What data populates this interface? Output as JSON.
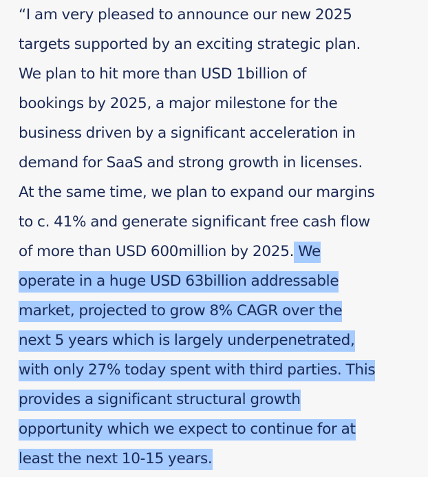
{
  "selection_color": "#a6cbff",
  "text_color": "#1b2a55",
  "quote": {
    "lines": [
      {
        "plain": "“I am very pleased to announce our new 2025",
        "selected": ""
      },
      {
        "plain": "targets supported by an exciting strategic plan.",
        "selected": ""
      },
      {
        "plain": "We plan to hit more than USD 1billion of",
        "selected": ""
      },
      {
        "plain": "bookings by 2025, a major milestone for the",
        "selected": ""
      },
      {
        "plain": "business driven by a significant acceleration in",
        "selected": ""
      },
      {
        "plain": "demand for SaaS and strong growth in licenses.",
        "selected": ""
      },
      {
        "plain": "At the same time, we plan to expand our margins",
        "selected": ""
      },
      {
        "plain": "to c. 41% and generate significant free cash flow",
        "selected": ""
      },
      {
        "plain": "of more than USD 600million by 2025.",
        "selected": " We"
      },
      {
        "plain": "",
        "selected": "operate in a huge USD 63billion addressable"
      },
      {
        "plain": "",
        "selected": "market, projected to grow 8% CAGR over the"
      },
      {
        "plain": "",
        "selected": "next 5 years which is largely underpenetrated,"
      },
      {
        "plain": "",
        "selected": "with only 27% today spent with third parties. This"
      },
      {
        "plain": "",
        "selected": "provides a significant structural growth"
      },
      {
        "plain": "",
        "selected": "opportunity which we expect to continue for at"
      },
      {
        "plain": "",
        "selected": "least the next 10-15 years."
      }
    ]
  }
}
